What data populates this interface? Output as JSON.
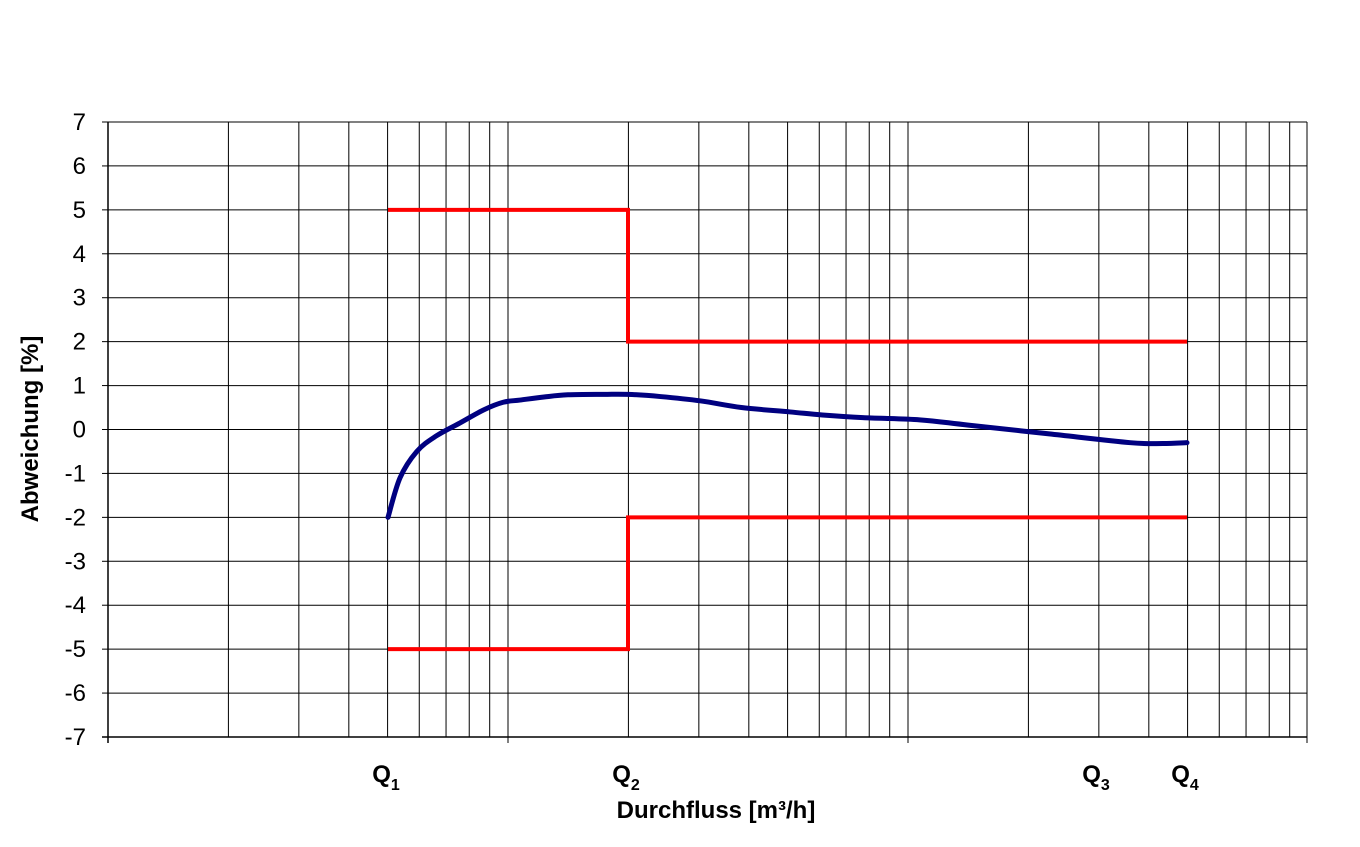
{
  "chart_data": {
    "type": "line",
    "xlabel": "Durchfluss [m³/h]",
    "ylabel": "Abweichung [%]",
    "x_scale": "log",
    "ylim": [
      -7,
      7
    ],
    "y_ticks": [
      "7",
      "6",
      "5",
      "4",
      "3",
      "2",
      "1",
      "0",
      "-1",
      "-2",
      "-3",
      "-4",
      "-5",
      "-6",
      "-7"
    ],
    "grid": true,
    "x_tick_labels": [
      {
        "main": "Q",
        "sub": "1",
        "x": 1
      },
      {
        "main": "Q",
        "sub": "2",
        "x": 2
      },
      {
        "main": "Q",
        "sub": "3",
        "x": 3
      },
      {
        "main": "Q",
        "sub": "4",
        "x": 4
      }
    ],
    "limits": {
      "color": "#ff0000",
      "upper": [
        [
          1,
          5
        ],
        [
          2,
          5
        ],
        [
          2,
          2
        ],
        [
          4,
          2
        ]
      ],
      "lower": [
        [
          1,
          -5
        ],
        [
          2,
          -5
        ],
        [
          2,
          -2
        ],
        [
          4,
          -2
        ]
      ]
    },
    "series": [
      {
        "color": "#000080",
        "points": [
          [
            1.0,
            -2.0
          ],
          [
            1.05,
            -1.1
          ],
          [
            1.12,
            -0.5
          ],
          [
            1.2,
            -0.15
          ],
          [
            1.3,
            0.15
          ],
          [
            1.4,
            0.45
          ],
          [
            1.48,
            0.62
          ],
          [
            1.55,
            0.67
          ],
          [
            1.65,
            0.74
          ],
          [
            1.75,
            0.79
          ],
          [
            1.9,
            0.8
          ],
          [
            2.0,
            0.8
          ],
          [
            2.2,
            0.75
          ],
          [
            2.45,
            0.65
          ],
          [
            2.7,
            0.5
          ],
          [
            3.0,
            0.4
          ],
          [
            3.2,
            0.33
          ],
          [
            3.45,
            0.27
          ],
          [
            3.8,
            0.22
          ],
          [
            4.1,
            0.1
          ],
          [
            4.6,
            -0.1
          ],
          [
            5.1,
            -0.3
          ],
          [
            5.3,
            -0.32
          ],
          [
            5.45,
            -0.3
          ]
        ]
      }
    ]
  }
}
